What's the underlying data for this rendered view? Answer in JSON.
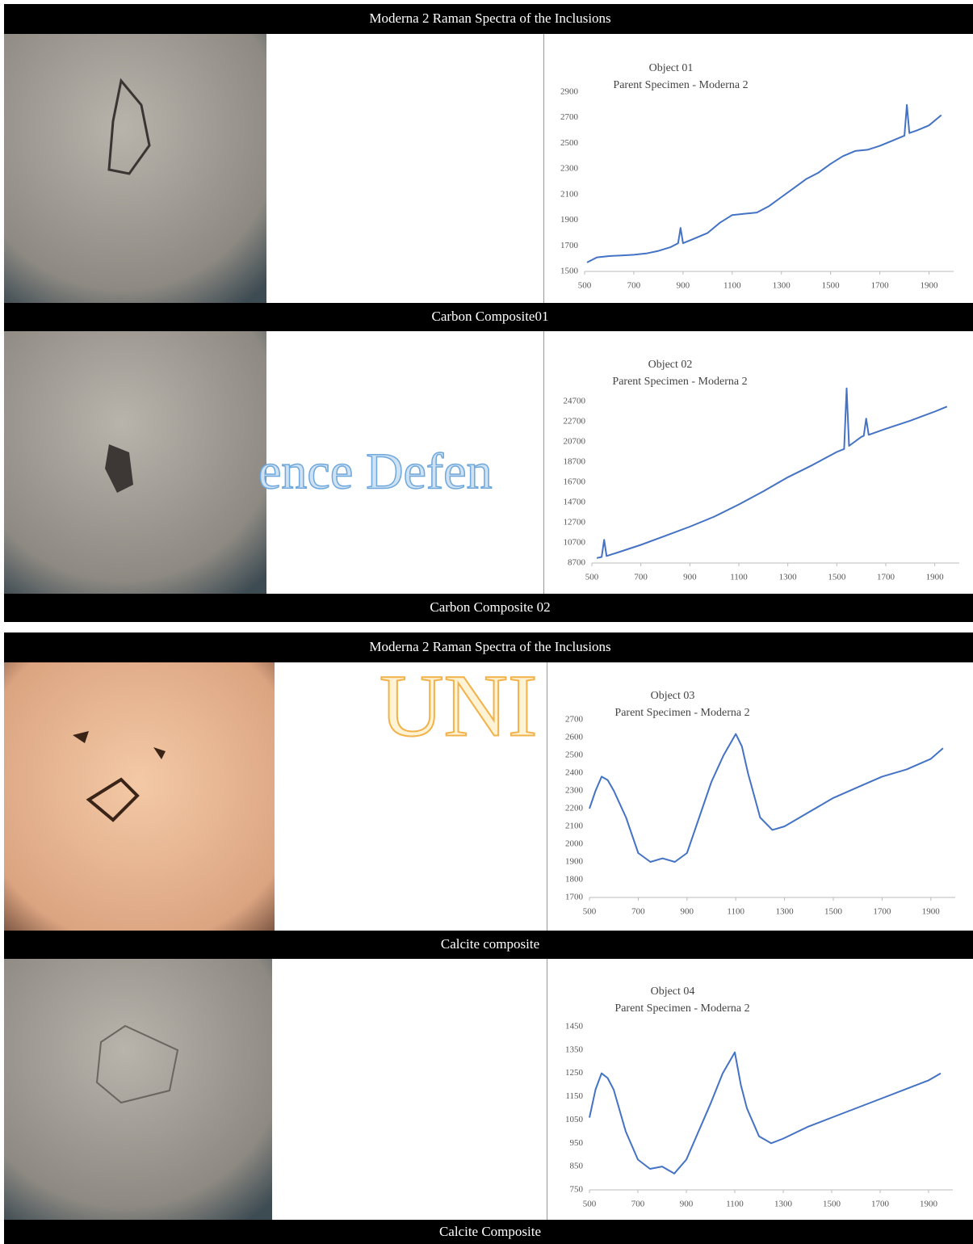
{
  "headers": [
    "Moderna 2 Raman Spectra of the Inclusions",
    "Moderna 2 Raman Spectra of the Inclusions"
  ],
  "captions": [
    "Carbon Composite01",
    "Carbon Composite 02",
    "Calcite composite",
    "Calcite Composite"
  ],
  "watermark": [
    "ence Defen",
    "UNI"
  ],
  "chart_data": [
    {
      "type": "line",
      "title": "Object 01",
      "subtitle": "Parent Specimen - Moderna 2",
      "color": "#4472c4",
      "x": [
        510,
        550,
        600,
        650,
        700,
        750,
        800,
        850,
        880,
        890,
        900,
        950,
        1000,
        1050,
        1100,
        1150,
        1200,
        1250,
        1300,
        1350,
        1400,
        1450,
        1500,
        1550,
        1600,
        1650,
        1700,
        1750,
        1800,
        1810,
        1820,
        1850,
        1900,
        1950
      ],
      "values": [
        1570,
        1610,
        1620,
        1625,
        1630,
        1640,
        1660,
        1690,
        1720,
        1840,
        1720,
        1760,
        1800,
        1880,
        1940,
        1950,
        1960,
        2010,
        2080,
        2150,
        2220,
        2270,
        2340,
        2400,
        2440,
        2450,
        2480,
        2520,
        2560,
        2800,
        2580,
        2600,
        2640,
        2720
      ],
      "xlim": [
        500,
        2000
      ],
      "xticks": [
        500,
        700,
        900,
        1100,
        1300,
        1500,
        1700,
        1900
      ],
      "ylim": [
        1500,
        2900
      ],
      "yticks": [
        1500,
        1700,
        1900,
        2100,
        2300,
        2500,
        2700,
        2900
      ]
    },
    {
      "type": "line",
      "title": "Object 02",
      "subtitle": "Parent Specimen - Moderna 2",
      "color": "#4472c4",
      "x": [
        520,
        540,
        550,
        560,
        600,
        700,
        800,
        900,
        1000,
        1100,
        1200,
        1300,
        1400,
        1500,
        1530,
        1540,
        1550,
        1600,
        1610,
        1620,
        1630,
        1700,
        1800,
        1900,
        1950
      ],
      "values": [
        9200,
        9300,
        11000,
        9400,
        9700,
        10500,
        11400,
        12300,
        13300,
        14500,
        15800,
        17200,
        18400,
        19700,
        20000,
        26000,
        20300,
        21200,
        21300,
        23000,
        21400,
        22000,
        22800,
        23700,
        24200
      ],
      "xlim": [
        500,
        2000
      ],
      "xticks": [
        500,
        700,
        900,
        1100,
        1300,
        1500,
        1700,
        1900
      ],
      "ylim": [
        8700,
        26700
      ],
      "yticks": [
        8700,
        10700,
        12700,
        14700,
        16700,
        18700,
        20700,
        22700,
        24700
      ]
    },
    {
      "type": "line",
      "title": "Object 03",
      "subtitle": "Parent Specimen - Moderna 2",
      "color": "#4472c4",
      "x": [
        500,
        525,
        550,
        575,
        600,
        650,
        700,
        750,
        800,
        850,
        900,
        950,
        1000,
        1050,
        1100,
        1125,
        1150,
        1200,
        1250,
        1300,
        1400,
        1500,
        1600,
        1700,
        1800,
        1900,
        1950
      ],
      "values": [
        2200,
        2300,
        2380,
        2360,
        2300,
        2150,
        1950,
        1900,
        1920,
        1900,
        1950,
        2150,
        2350,
        2500,
        2620,
        2550,
        2400,
        2150,
        2080,
        2100,
        2180,
        2260,
        2320,
        2380,
        2420,
        2480,
        2540
      ],
      "xlim": [
        500,
        2000
      ],
      "xticks": [
        500,
        700,
        900,
        1100,
        1300,
        1500,
        1700,
        1900
      ],
      "ylim": [
        1700,
        2700
      ],
      "yticks": [
        1700,
        1800,
        1900,
        2000,
        2100,
        2200,
        2300,
        2400,
        2500,
        2600,
        2700
      ]
    },
    {
      "type": "line",
      "title": "Object 04",
      "subtitle": "Parent Specimen - Moderna 2",
      "color": "#4472c4",
      "x": [
        500,
        525,
        550,
        575,
        600,
        650,
        700,
        750,
        800,
        850,
        900,
        950,
        1000,
        1050,
        1100,
        1125,
        1150,
        1200,
        1250,
        1300,
        1400,
        1500,
        1600,
        1700,
        1800,
        1900,
        1950
      ],
      "values": [
        1060,
        1180,
        1250,
        1230,
        1180,
        1000,
        880,
        840,
        850,
        820,
        880,
        1000,
        1120,
        1250,
        1340,
        1200,
        1100,
        980,
        950,
        970,
        1020,
        1060,
        1100,
        1140,
        1180,
        1220,
        1250
      ],
      "xlim": [
        500,
        2000
      ],
      "xticks": [
        500,
        700,
        900,
        1100,
        1300,
        1500,
        1700,
        1900
      ],
      "ylim": [
        750,
        1450
      ],
      "yticks": [
        750,
        850,
        950,
        1050,
        1150,
        1250,
        1350,
        1450
      ]
    }
  ]
}
